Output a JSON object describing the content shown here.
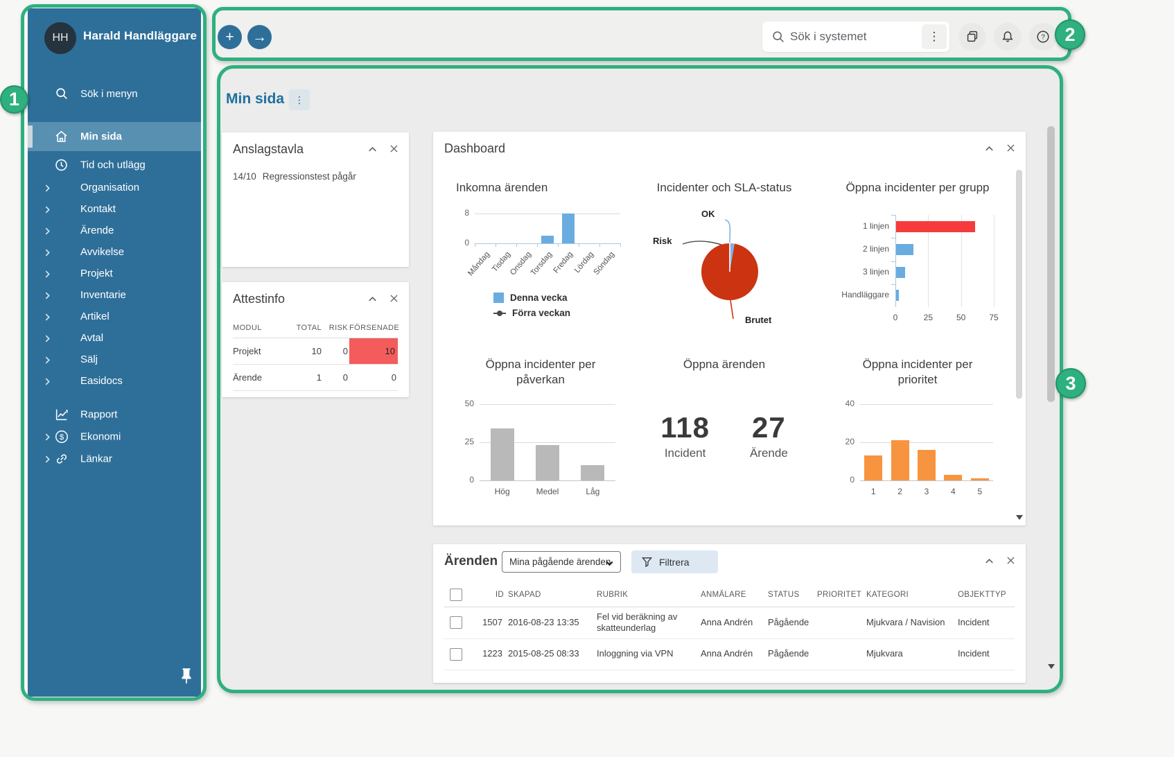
{
  "annotations": {
    "badges": [
      "1",
      "2",
      "3"
    ],
    "accent_color": "#2eb07f"
  },
  "sidebar": {
    "avatar_initials": "HH",
    "user_name": "Harald Handläggare",
    "search_label": "Sök i menyn",
    "items_primary": [
      {
        "label": "Min sida",
        "selected": true
      },
      {
        "label": "Tid och utlägg",
        "selected": false
      }
    ],
    "items_expandable": [
      "Organisation",
      "Kontakt",
      "Ärende",
      "Avvikelse",
      "Projekt",
      "Inventarie",
      "Artikel",
      "Avtal",
      "Sälj",
      "Easidocs"
    ],
    "items_bottom": [
      {
        "label": "Rapport"
      },
      {
        "label": "Ekonomi"
      },
      {
        "label": "Länkar"
      }
    ]
  },
  "topbar": {
    "search_placeholder": "Sök i systemet"
  },
  "page": {
    "title": "Min sida"
  },
  "widgets": {
    "anslagstavla": {
      "title": "Anslagstavla",
      "entries": [
        {
          "date": "14/10",
          "text": "Regressionstest pågår"
        }
      ]
    },
    "attestinfo": {
      "title": "Attestinfo",
      "columns": [
        "MODUL",
        "TOTAL",
        "RISK",
        "FÖRSENADE"
      ],
      "rows": [
        {
          "cells": [
            "Projekt",
            "10",
            "0",
            "10"
          ],
          "alert": true
        },
        {
          "cells": [
            "Ärende",
            "1",
            "0",
            "0"
          ],
          "alert": false
        }
      ]
    },
    "dashboard": {
      "title": "Dashboard"
    },
    "arenden": {
      "title": "Ärenden -",
      "filter_selected": "Mina pågående ärenden",
      "filter_button": "Filtrera",
      "columns": [
        "ID",
        "SKAPAD",
        "RUBRIK",
        "ANMÄLARE",
        "STATUS",
        "PRIORITET",
        "KATEGORI",
        "OBJEKTTYP"
      ],
      "rows": [
        [
          "1507",
          "2016-08-23 13:35",
          "Fel vid beräkning av skatteunderlag",
          "Anna Andrén",
          "Pågående",
          "",
          "Mjukvara / Navision",
          "Incident"
        ],
        [
          "1223",
          "2015-08-25 08:33",
          "Inloggning via VPN",
          "Anna Andrén",
          "Pågående",
          "",
          "Mjukvara",
          "Incident"
        ]
      ]
    }
  },
  "chart_data": [
    {
      "id": "inkomna",
      "type": "bar",
      "title": "Inkomna ärenden",
      "categories": [
        "Måndag",
        "Tisdag",
        "Onsdag",
        "Torsdag",
        "Fredag",
        "Lördag",
        "Söndag"
      ],
      "series": [
        {
          "name": "Denna vecka",
          "type": "bar",
          "color": "#6aace0",
          "values": [
            0,
            0,
            0,
            2,
            8,
            0,
            0
          ]
        },
        {
          "name": "Förra veckan",
          "type": "line",
          "color": "#4a4a4a",
          "values": [
            0,
            0,
            0,
            0,
            0,
            0,
            0
          ]
        }
      ],
      "ylim": [
        0,
        8
      ],
      "yticks": [
        0,
        8
      ],
      "legend": true
    },
    {
      "id": "sla",
      "type": "pie",
      "title": "Incidenter och SLA-status",
      "slices": [
        {
          "label": "OK",
          "value": 1,
          "color": "#7fb3e0"
        },
        {
          "label": "Risk",
          "value": 0.5,
          "color": "#4a4a4a"
        },
        {
          "label": "Brutet",
          "value": 98.5,
          "color": "#cc3311"
        }
      ]
    },
    {
      "id": "grupp",
      "type": "hbar",
      "title": "Öppna incidenter per grupp",
      "categories": [
        "1 linjen",
        "2 linjen",
        "3 linjen",
        "Handläggare"
      ],
      "values": [
        60,
        13,
        7,
        2
      ],
      "colors": [
        "#f53b3b",
        "#6aace0",
        "#6aace0",
        "#6aace0"
      ],
      "xlim": [
        0,
        75
      ],
      "xticks": [
        0,
        25,
        50,
        75
      ]
    },
    {
      "id": "paverkan",
      "type": "bar",
      "title": "Öppna incidenter per påverkan",
      "categories": [
        "Hög",
        "Medel",
        "Låg"
      ],
      "values": [
        34,
        23,
        10
      ],
      "color": "#b9b9b9",
      "ylim": [
        0,
        50
      ],
      "yticks": [
        0,
        25,
        50
      ]
    },
    {
      "id": "oppna",
      "type": "stat",
      "title": "Öppna ärenden",
      "stats": [
        {
          "value": "118",
          "label": "Incident"
        },
        {
          "value": "27",
          "label": "Ärende"
        }
      ]
    },
    {
      "id": "prioritet",
      "type": "bar",
      "title": "Öppna incidenter per prioritet",
      "categories": [
        "1",
        "2",
        "3",
        "4",
        "5"
      ],
      "values": [
        13,
        21,
        16,
        3,
        1
      ],
      "color": "#f79440",
      "ylim": [
        0,
        40
      ],
      "yticks": [
        0,
        20,
        40
      ]
    }
  ]
}
